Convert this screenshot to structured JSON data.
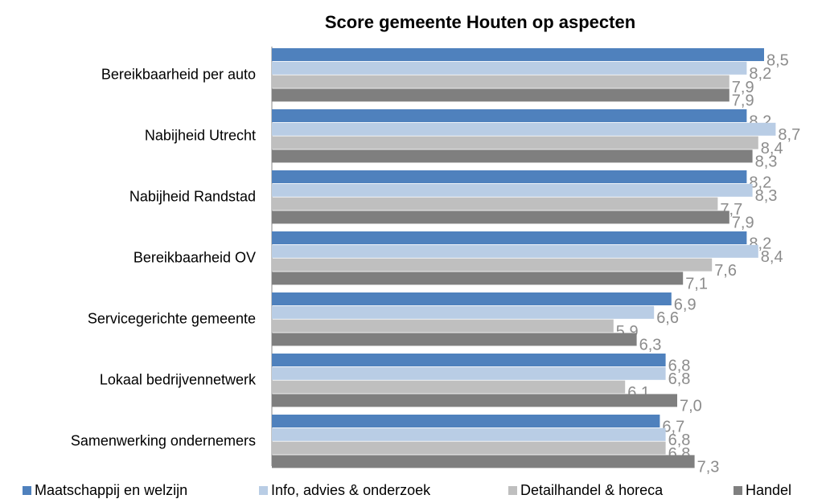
{
  "chart_data": {
    "type": "hbar",
    "title": "Score gemeente Houten op aspecten",
    "categories": [
      "Bereikbaarheid per auto",
      "Nabijheid Utrecht",
      "Nabijheid Randstad",
      "Bereikbaarheid OV",
      "Servicegerichte gemeente",
      "Lokaal bedrijvennetwerk",
      "Samenwerking ondernemers"
    ],
    "series": [
      {
        "name": "Maatschappij en welzijn",
        "color": "#4f81bd",
        "values": [
          8.5,
          8.2,
          8.2,
          8.2,
          6.9,
          6.8,
          6.7
        ],
        "value_labels": [
          "8,5",
          "8,2",
          "8,2",
          "8,2",
          "6,9",
          "6,8",
          "6,7"
        ]
      },
      {
        "name": "Info, advies & onderzoek",
        "color": "#b9cde5",
        "values": [
          8.2,
          8.7,
          8.3,
          8.4,
          6.6,
          6.8,
          6.8
        ],
        "value_labels": [
          "8,2",
          "8,7",
          "8,3",
          "8,4",
          "6,6",
          "6,8",
          "6,8"
        ]
      },
      {
        "name": "Detailhandel & horeca",
        "color": "#bfbfbf",
        "values": [
          7.9,
          8.4,
          7.7,
          7.6,
          5.9,
          6.1,
          6.8
        ],
        "value_labels": [
          "7,9",
          "8,4",
          "7,7",
          "7,6",
          "5,9",
          "6,1",
          "6,8"
        ]
      },
      {
        "name": "Handel",
        "color": "#7f7f7f",
        "values": [
          7.9,
          8.3,
          7.9,
          7.1,
          6.3,
          7.0,
          7.3
        ],
        "value_labels": [
          "7,9",
          "8,3",
          "7,9",
          "7,1",
          "6,3",
          "7,0",
          "7,3"
        ]
      }
    ],
    "xlim": [
      0,
      9
    ],
    "legend": "bottom"
  }
}
